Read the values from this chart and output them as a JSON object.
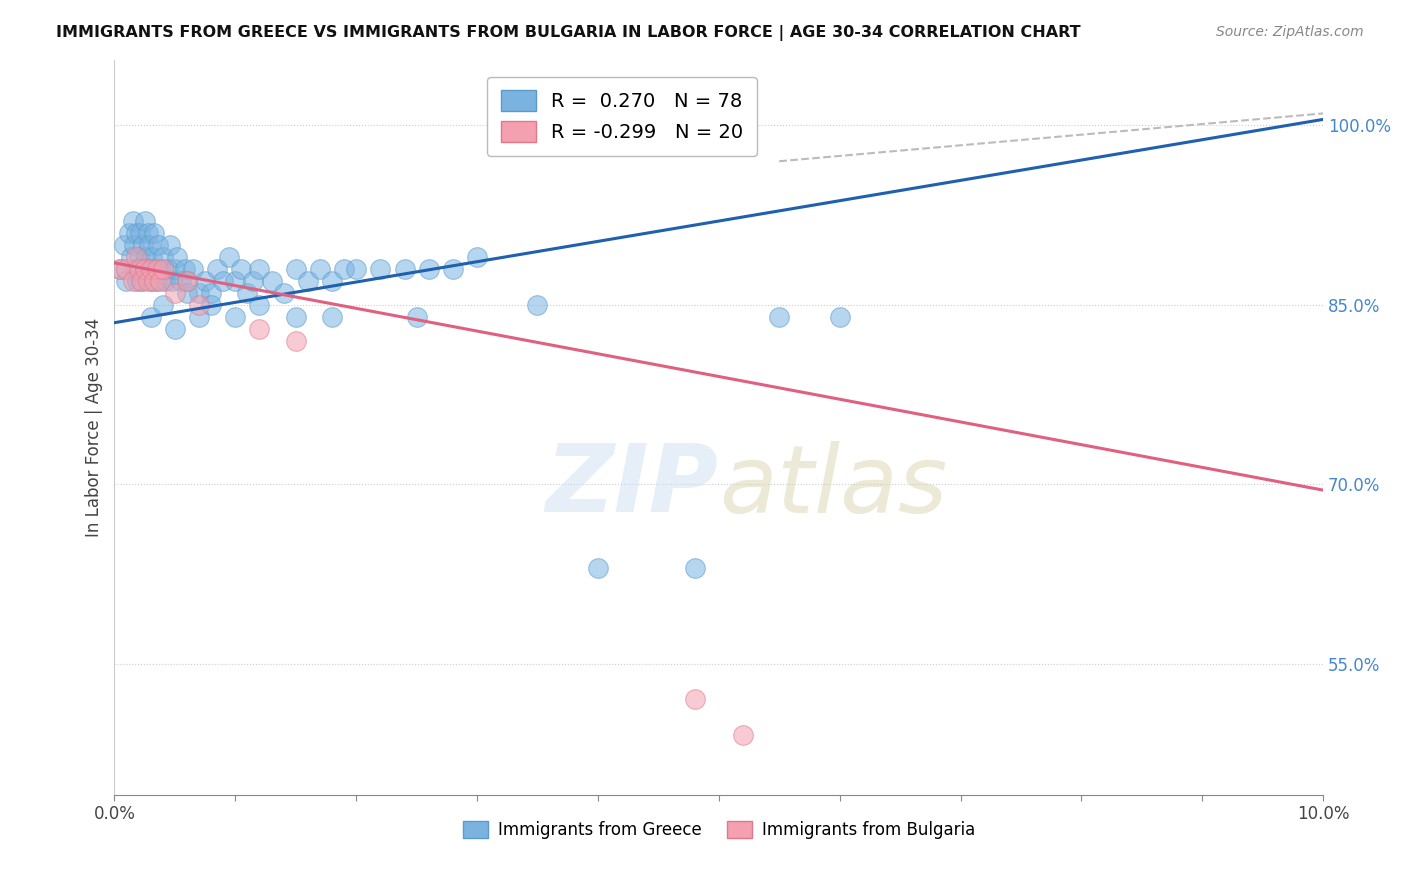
{
  "title": "IMMIGRANTS FROM GREECE VS IMMIGRANTS FROM BULGARIA IN LABOR FORCE | AGE 30-34 CORRELATION CHART",
  "source": "Source: ZipAtlas.com",
  "ylabel": "In Labor Force | Age 30-34",
  "R_greece": 0.27,
  "N_greece": 78,
  "R_bulgaria": -0.299,
  "N_bulgaria": 20,
  "greece_color": "#7ab3e0",
  "greece_edge_color": "#5a9acc",
  "bulgaria_color": "#f4a0b0",
  "bulgaria_edge_color": "#e07888",
  "greece_line_color": "#2060b0",
  "bulgaria_line_color": "#e06080",
  "dashed_line_color": "#bbbbbb",
  "greece_scatter_x": [
    0.05,
    0.08,
    0.1,
    0.12,
    0.14,
    0.15,
    0.16,
    0.17,
    0.18,
    0.19,
    0.2,
    0.21,
    0.22,
    0.23,
    0.24,
    0.25,
    0.26,
    0.27,
    0.28,
    0.29,
    0.3,
    0.31,
    0.32,
    0.33,
    0.35,
    0.36,
    0.38,
    0.4,
    0.42,
    0.44,
    0.46,
    0.48,
    0.5,
    0.52,
    0.55,
    0.58,
    0.6,
    0.65,
    0.7,
    0.75,
    0.8,
    0.85,
    0.9,
    0.95,
    1.0,
    1.05,
    1.1,
    1.15,
    1.2,
    1.3,
    1.4,
    1.5,
    1.6,
    1.7,
    1.8,
    1.9,
    2.0,
    2.2,
    2.4,
    2.6,
    2.8,
    3.0,
    0.3,
    0.4,
    0.5,
    0.6,
    0.7,
    0.8,
    1.0,
    1.2,
    1.5,
    1.8,
    2.5,
    3.5,
    4.0,
    4.8,
    5.5,
    6.0
  ],
  "greece_scatter_y": [
    0.88,
    0.9,
    0.87,
    0.91,
    0.89,
    0.92,
    0.9,
    0.88,
    0.91,
    0.87,
    0.89,
    0.91,
    0.88,
    0.87,
    0.9,
    0.92,
    0.89,
    0.88,
    0.91,
    0.9,
    0.87,
    0.89,
    0.88,
    0.91,
    0.87,
    0.9,
    0.88,
    0.89,
    0.87,
    0.88,
    0.9,
    0.87,
    0.88,
    0.89,
    0.87,
    0.88,
    0.87,
    0.88,
    0.86,
    0.87,
    0.86,
    0.88,
    0.87,
    0.89,
    0.87,
    0.88,
    0.86,
    0.87,
    0.88,
    0.87,
    0.86,
    0.88,
    0.87,
    0.88,
    0.87,
    0.88,
    0.88,
    0.88,
    0.88,
    0.88,
    0.88,
    0.89,
    0.84,
    0.85,
    0.83,
    0.86,
    0.84,
    0.85,
    0.84,
    0.85,
    0.84,
    0.84,
    0.84,
    0.85,
    0.63,
    0.63,
    0.84,
    0.84
  ],
  "bulgaria_scatter_x": [
    0.05,
    0.1,
    0.15,
    0.18,
    0.2,
    0.22,
    0.25,
    0.28,
    0.3,
    0.33,
    0.35,
    0.38,
    0.4,
    0.5,
    0.6,
    0.7,
    1.2,
    1.5,
    4.8,
    5.2
  ],
  "bulgaria_scatter_y": [
    0.88,
    0.88,
    0.87,
    0.89,
    0.88,
    0.87,
    0.88,
    0.87,
    0.88,
    0.87,
    0.88,
    0.87,
    0.88,
    0.86,
    0.87,
    0.85,
    0.83,
    0.82,
    0.52,
    0.49
  ],
  "blue_line_x0": 0.0,
  "blue_line_y0": 0.835,
  "blue_line_x1": 10.0,
  "blue_line_y1": 1.005,
  "pink_line_x0": 0.0,
  "pink_line_y0": 0.885,
  "pink_line_x1": 10.0,
  "pink_line_y1": 0.695,
  "dash_line_x0": 5.5,
  "dash_line_y0": 0.97,
  "dash_line_x1": 10.0,
  "dash_line_y1": 1.01,
  "xlim": [
    0.0,
    10.0
  ],
  "ylim": [
    0.44,
    1.055
  ],
  "ytick_vals": [
    0.55,
    0.7,
    0.85,
    1.0
  ],
  "ytick_labels": [
    "55.0%",
    "70.0%",
    "85.0%",
    "100.0%"
  ],
  "xtick_vals": [
    0,
    1,
    2,
    3,
    4,
    5,
    6,
    7,
    8,
    9,
    10
  ]
}
